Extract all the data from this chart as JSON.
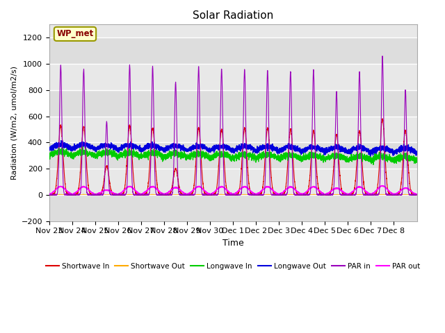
{
  "title": "Solar Radiation",
  "xlabel": "Time",
  "ylabel": "Radiation (W/m2, umol/m2/s)",
  "ylim": [
    -200,
    1300
  ],
  "yticks": [
    -200,
    0,
    200,
    400,
    600,
    800,
    1000,
    1200
  ],
  "station_label": "WP_met",
  "bg_color": "#e8e8e8",
  "fig_color": "#ffffff",
  "series": {
    "shortwave_in": {
      "color": "#dd0000",
      "label": "Shortwave In"
    },
    "shortwave_out": {
      "color": "#ffaa00",
      "label": "Shortwave Out"
    },
    "longwave_in": {
      "color": "#00cc00",
      "label": "Longwave In"
    },
    "longwave_out": {
      "color": "#0000dd",
      "label": "Longwave Out"
    },
    "par_in": {
      "color": "#9900bb",
      "label": "PAR in"
    },
    "par_out": {
      "color": "#ff00ff",
      "label": "PAR out"
    }
  },
  "x_tick_labels": [
    "Nov 23",
    "Nov 24",
    "Nov 25",
    "Nov 26",
    "Nov 27",
    "Nov 28",
    "Nov 29",
    "Nov 30",
    "Dec 1",
    "Dec 2",
    "Dec 3",
    "Dec 4",
    "Dec 5",
    "Dec 6",
    "Dec 7",
    "Dec 8"
  ],
  "n_days": 16,
  "points_per_day": 288,
  "par_in_peaks": [
    990,
    960,
    560,
    990,
    980,
    860,
    980,
    960,
    960,
    950,
    940,
    950,
    790,
    940,
    1060,
    800
  ],
  "sw_in_peaks": [
    530,
    520,
    220,
    530,
    510,
    200,
    510,
    500,
    510,
    510,
    500,
    490,
    460,
    490,
    580,
    490
  ],
  "lw_in_base": 300,
  "lw_out_base": 350
}
